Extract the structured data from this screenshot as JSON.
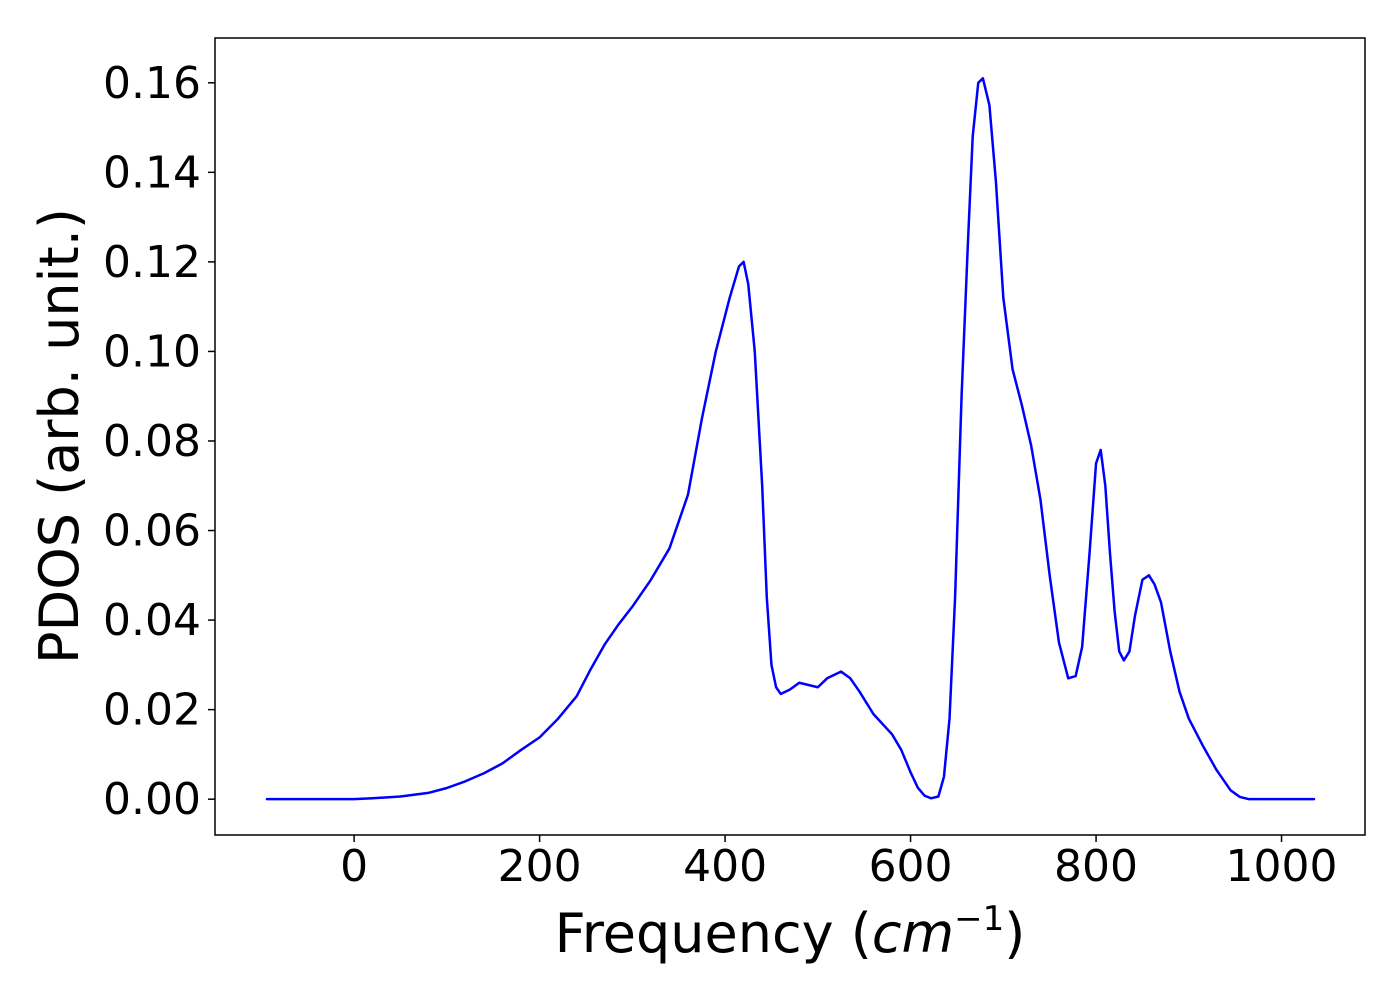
{
  "chart_data": {
    "type": "line",
    "title": "",
    "xlabel_main": "Frequency (",
    "xlabel_unit": "cm",
    "xlabel_exp": "−1",
    "xlabel_close": ")",
    "ylabel": "PDOS (arb. unit.)",
    "xlim": [
      -150,
      1090
    ],
    "ylim": [
      -0.008,
      0.17
    ],
    "xticks": [
      0,
      200,
      400,
      600,
      800,
      1000
    ],
    "xtick_labels": [
      "0",
      "200",
      "400",
      "600",
      "800",
      "1000"
    ],
    "yticks": [
      0.0,
      0.02,
      0.04,
      0.06,
      0.08,
      0.1,
      0.12,
      0.14,
      0.16
    ],
    "ytick_labels": [
      "0.00",
      "0.02",
      "0.04",
      "0.06",
      "0.08",
      "0.10",
      "0.12",
      "0.14",
      "0.16"
    ],
    "grid": false,
    "legend": false,
    "line_color": "#0000ff",
    "series": [
      {
        "x": [
          -94,
          0,
          20,
          50,
          80,
          100,
          120,
          140,
          160,
          180,
          200,
          220,
          240,
          255,
          270,
          285,
          300,
          320,
          340,
          360,
          375,
          390,
          405,
          415,
          420,
          425,
          432,
          440,
          445,
          450,
          455,
          460,
          470,
          480,
          490,
          500,
          510,
          525,
          535,
          545,
          560,
          580,
          590,
          600,
          608,
          615,
          622,
          630,
          636,
          642,
          648,
          655,
          662,
          667,
          673,
          678,
          685,
          692,
          700,
          710,
          720,
          730,
          740,
          750,
          760,
          770,
          778,
          785,
          793,
          800,
          805,
          810,
          815,
          820,
          825,
          830,
          836,
          842,
          850,
          857,
          863,
          870,
          880,
          890,
          900,
          915,
          930,
          945,
          955,
          965,
          1000,
          1035
        ],
        "y": [
          0.0,
          0.0,
          0.0002,
          0.0006,
          0.0014,
          0.0025,
          0.004,
          0.0058,
          0.008,
          0.011,
          0.0138,
          0.018,
          0.023,
          0.029,
          0.0345,
          0.039,
          0.043,
          0.049,
          0.056,
          0.068,
          0.085,
          0.1,
          0.112,
          0.119,
          0.12,
          0.115,
          0.1,
          0.07,
          0.045,
          0.03,
          0.025,
          0.0235,
          0.0245,
          0.026,
          0.0255,
          0.025,
          0.027,
          0.0285,
          0.027,
          0.024,
          0.019,
          0.0145,
          0.011,
          0.006,
          0.0025,
          0.0008,
          0.0002,
          0.0006,
          0.005,
          0.018,
          0.045,
          0.09,
          0.125,
          0.148,
          0.16,
          0.161,
          0.155,
          0.138,
          0.112,
          0.096,
          0.088,
          0.079,
          0.067,
          0.05,
          0.035,
          0.027,
          0.0275,
          0.034,
          0.055,
          0.075,
          0.078,
          0.07,
          0.055,
          0.042,
          0.033,
          0.031,
          0.033,
          0.041,
          0.049,
          0.05,
          0.048,
          0.044,
          0.033,
          0.024,
          0.018,
          0.012,
          0.0065,
          0.002,
          0.0005,
          0.0,
          0.0,
          0.0
        ]
      }
    ]
  }
}
